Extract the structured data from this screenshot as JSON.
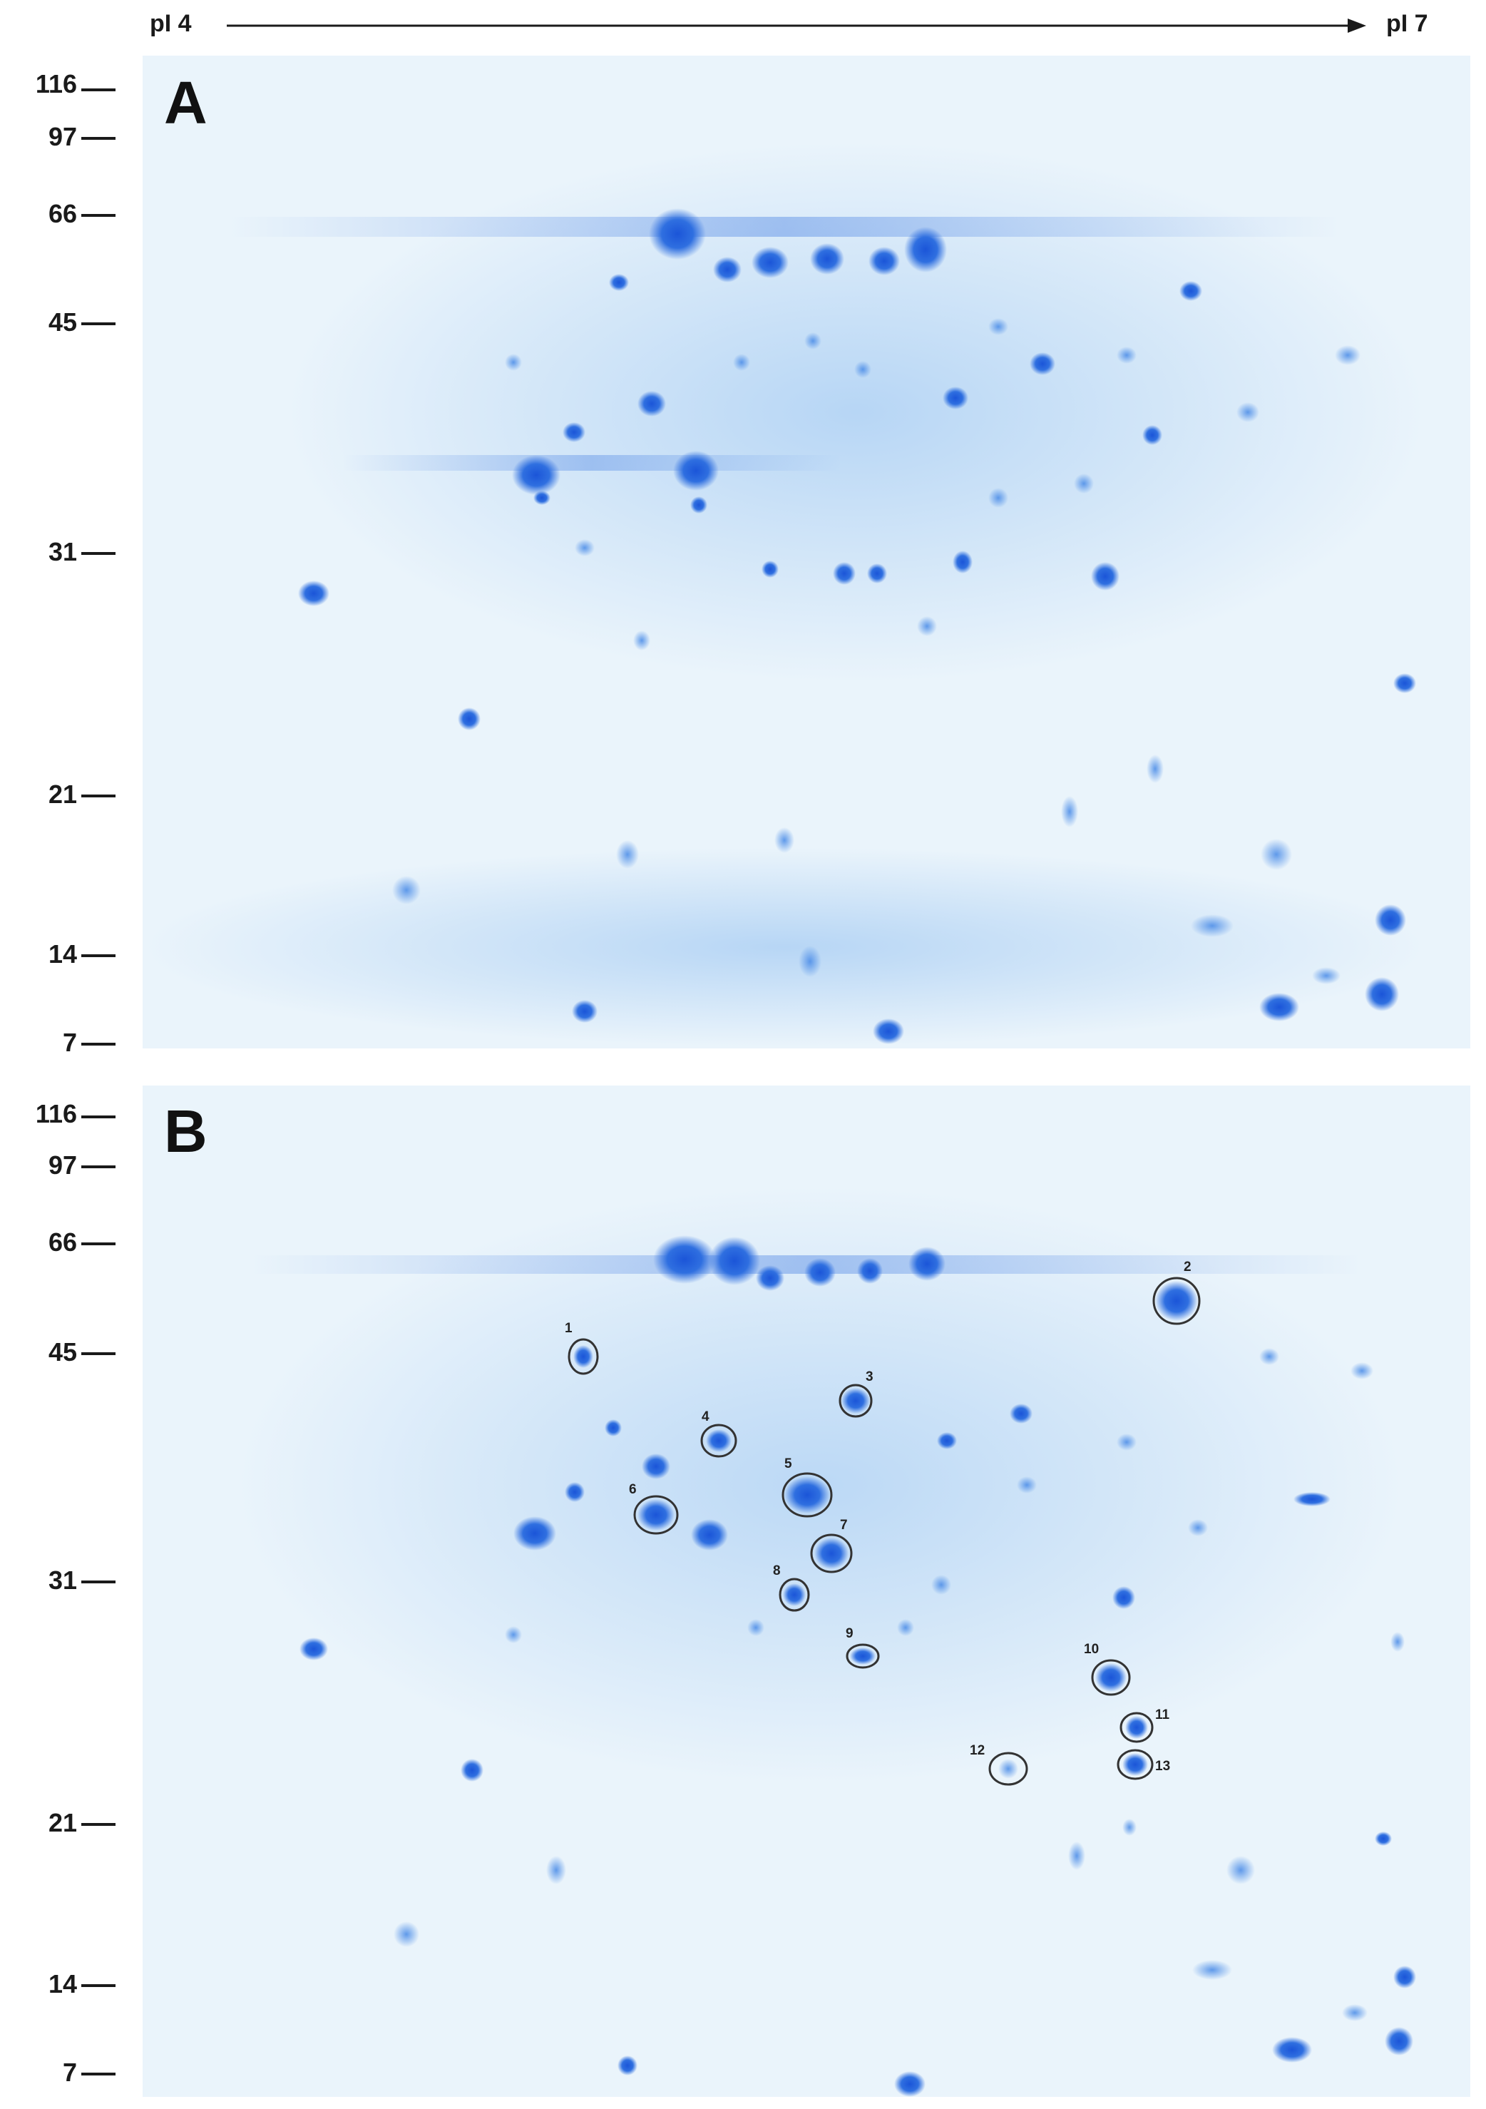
{
  "ph_axis": {
    "left_label": "pI 4",
    "right_label": "pI 7"
  },
  "panels": [
    {
      "letter": "A",
      "mw_markers": [
        "116",
        "97",
        "66",
        "45",
        "31",
        "21",
        "14",
        "7"
      ]
    },
    {
      "letter": "B",
      "mw_markers": [
        "116",
        "97",
        "66",
        "45",
        "31",
        "21",
        "14",
        "7"
      ],
      "circled_spots": [
        "1",
        "2",
        "3",
        "4",
        "5",
        "6",
        "7",
        "8",
        "9",
        "10",
        "11",
        "12",
        "13"
      ]
    }
  ],
  "colors": {
    "stain": "#2f6fe0",
    "gel_background": "#eaf4fb",
    "ink": "#1a1a1a"
  }
}
